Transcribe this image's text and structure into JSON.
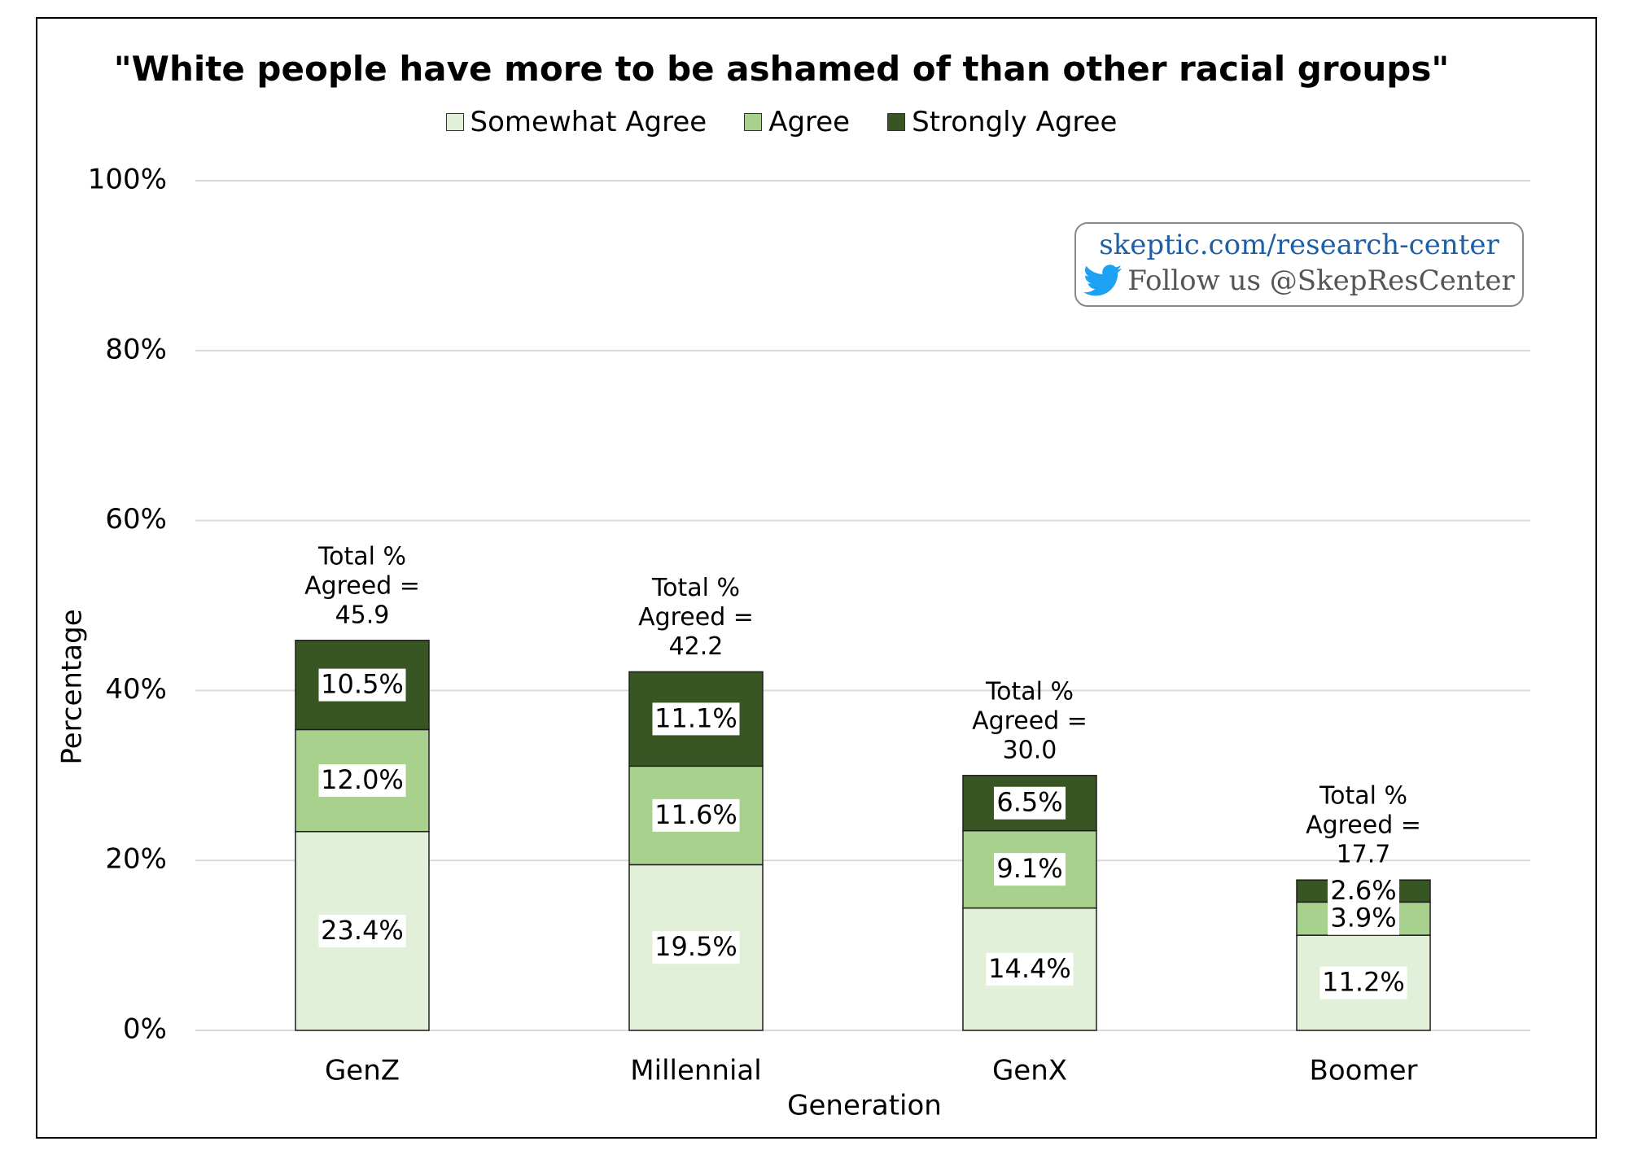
{
  "chart_data": {
    "type": "bar",
    "stacked": true,
    "title": "\"White people have more to be ashamed of than other racial groups\"",
    "xlabel": "Generation",
    "ylabel": "Percentage",
    "ylim": [
      0,
      100
    ],
    "yticks": [
      "0%",
      "20%",
      "40%",
      "60%",
      "80%",
      "100%"
    ],
    "ytick_values": [
      0,
      20,
      40,
      60,
      80,
      100
    ],
    "grid": true,
    "legend_position": "top",
    "categories": [
      "GenZ",
      "Millennial",
      "GenX",
      "Boomer"
    ],
    "series": [
      {
        "name": "Somewhat Agree",
        "color": "#e2efd9",
        "values": [
          23.4,
          19.5,
          14.4,
          11.2
        ],
        "labels": [
          "23.4%",
          "19.5%",
          "14.4%",
          "11.2%"
        ]
      },
      {
        "name": "Agree",
        "color": "#a9d18e",
        "values": [
          12.0,
          11.6,
          9.1,
          3.9
        ],
        "labels": [
          "12.0%",
          "11.6%",
          "9.1%",
          "3.9%"
        ]
      },
      {
        "name": "Strongly Agree",
        "color": "#375623",
        "values": [
          10.5,
          11.1,
          6.5,
          2.6
        ],
        "labels": [
          "10.5%",
          "11.1%",
          "6.5%",
          "2.6%"
        ]
      }
    ],
    "totals": [
      45.9,
      42.2,
      30.0,
      17.7
    ],
    "total_annotations": [
      [
        "Total %",
        "Agreed =",
        "45.9"
      ],
      [
        "Total %",
        "Agreed =",
        "42.2"
      ],
      [
        "Total %",
        "Agreed =",
        "30.0"
      ],
      [
        "Total %",
        "Agreed =",
        "17.7"
      ]
    ]
  },
  "watermark": {
    "url": "skeptic.com/research-center",
    "follow": "Follow us @SkepResCenter",
    "icon": "twitter-bird-icon",
    "url_color": "#1f5fa6",
    "icon_color": "#1da1f2"
  }
}
